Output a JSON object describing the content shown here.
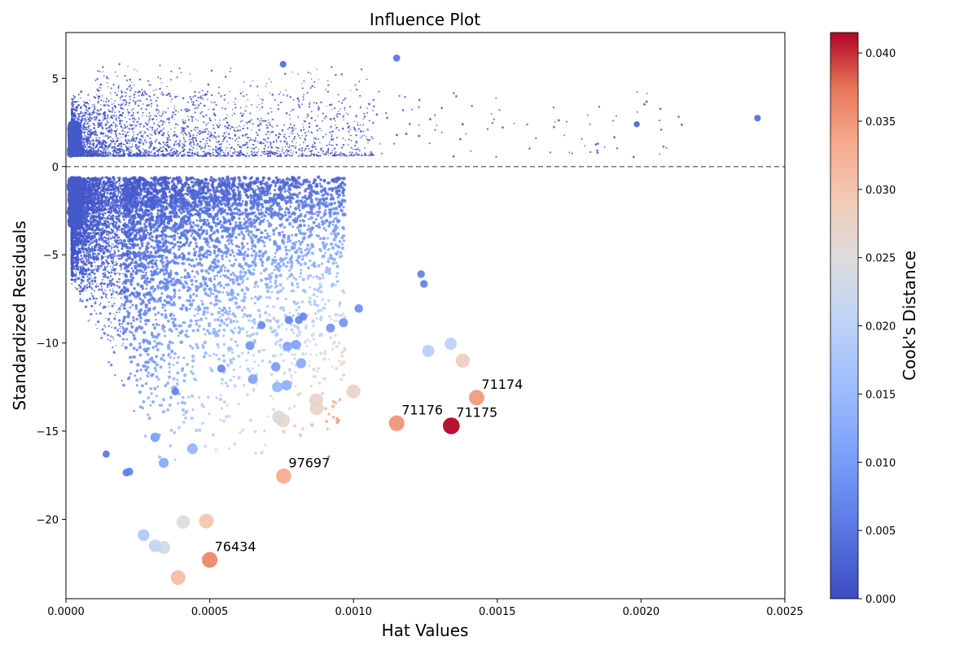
{
  "chart_data": {
    "type": "scatter",
    "title": "Influence Plot",
    "xlabel": "Hat Values",
    "ylabel": "Standardized Residuals",
    "xlim": [
      0,
      0.0025
    ],
    "ylim": [
      -24.5,
      7.6
    ],
    "x_ticks": [
      {
        "value": 0,
        "label": "0.0000"
      },
      {
        "value": 0.0005,
        "label": "0.0005"
      },
      {
        "value": 0.001,
        "label": "0.0010"
      },
      {
        "value": 0.0015,
        "label": "0.0015"
      },
      {
        "value": 0.002,
        "label": "0.0020"
      },
      {
        "value": 0.0025,
        "label": "0.0025"
      }
    ],
    "y_ticks": [
      {
        "value": 5,
        "label": "5"
      },
      {
        "value": 0,
        "label": "0"
      },
      {
        "value": -5,
        "label": "−5"
      },
      {
        "value": -10,
        "label": "−10"
      },
      {
        "value": -15,
        "label": "−15"
      },
      {
        "value": -20,
        "label": "−20"
      }
    ],
    "reference_line": {
      "y": 0,
      "style": "dashed",
      "color": "#808080"
    },
    "grid": false,
    "colorbar": {
      "label": "Cook's Distance",
      "colormap": "coolwarm",
      "range": [
        0,
        0.0415
      ],
      "ticks": [
        {
          "value": 0.0,
          "label": "0.000"
        },
        {
          "value": 0.005,
          "label": "0.005"
        },
        {
          "value": 0.01,
          "label": "0.010"
        },
        {
          "value": 0.015,
          "label": "0.015"
        },
        {
          "value": 0.02,
          "label": "0.020"
        },
        {
          "value": 0.025,
          "label": "0.025"
        },
        {
          "value": 0.03,
          "label": "0.030"
        },
        {
          "value": 0.035,
          "label": "0.035"
        },
        {
          "value": 0.04,
          "label": "0.040"
        }
      ]
    },
    "labeled_points": [
      {
        "label": "71174",
        "x": 0.001428,
        "y": -13.1,
        "cooks": 0.0345
      },
      {
        "label": "71176",
        "x": 0.00115,
        "y": -14.55,
        "cooks": 0.035
      },
      {
        "label": "71175",
        "x": 0.00134,
        "y": -14.7,
        "cooks": 0.0415
      },
      {
        "label": "97697",
        "x": 0.000757,
        "y": -17.55,
        "cooks": 0.033
      },
      {
        "label": "76434",
        "x": 0.0005,
        "y": -22.3,
        "cooks": 0.036
      }
    ],
    "notable_points": [
      {
        "x": 0.00039,
        "y": -23.3,
        "cooks": 0.031
      },
      {
        "x": 0.00034,
        "y": -21.6,
        "cooks": 0.023
      },
      {
        "x": 0.00031,
        "y": -21.5,
        "cooks": 0.021
      },
      {
        "x": 0.00027,
        "y": -20.9,
        "cooks": 0.018
      },
      {
        "x": 0.000408,
        "y": -20.15,
        "cooks": 0.025
      },
      {
        "x": 0.000488,
        "y": -20.1,
        "cooks": 0.03
      },
      {
        "x": 0.00044,
        "y": -16.0,
        "cooks": 0.014
      },
      {
        "x": 0.00034,
        "y": -16.8,
        "cooks": 0.012
      },
      {
        "x": 0.00031,
        "y": -15.35,
        "cooks": 0.01
      },
      {
        "x": 0.00074,
        "y": -14.2,
        "cooks": 0.024
      },
      {
        "x": 0.000755,
        "y": -14.4,
        "cooks": 0.026
      },
      {
        "x": 0.00087,
        "y": -13.25,
        "cooks": 0.027
      },
      {
        "x": 0.000872,
        "y": -13.7,
        "cooks": 0.027
      },
      {
        "x": 0.001,
        "y": -12.75,
        "cooks": 0.027
      },
      {
        "x": 0.001338,
        "y": -10.05,
        "cooks": 0.02
      },
      {
        "x": 0.00138,
        "y": -11.0,
        "cooks": 0.028
      },
      {
        "x": 0.00126,
        "y": -10.45,
        "cooks": 0.019
      },
      {
        "x": 0.000735,
        "y": -12.5,
        "cooks": 0.014
      },
      {
        "x": 0.000767,
        "y": -12.4,
        "cooks": 0.013
      },
      {
        "x": 0.00065,
        "y": -12.05,
        "cooks": 0.011
      },
      {
        "x": 0.000818,
        "y": -11.15,
        "cooks": 0.012
      },
      {
        "x": 0.00073,
        "y": -11.35,
        "cooks": 0.01
      },
      {
        "x": 0.00077,
        "y": -10.2,
        "cooks": 0.011
      },
      {
        "x": 0.0008,
        "y": -10.1,
        "cooks": 0.011
      },
      {
        "x": 0.00064,
        "y": -10.15,
        "cooks": 0.009
      },
      {
        "x": 0.00092,
        "y": -9.15,
        "cooks": 0.009
      },
      {
        "x": 0.000965,
        "y": -8.85,
        "cooks": 0.009
      },
      {
        "x": 0.001018,
        "y": -8.05,
        "cooks": 0.008
      },
      {
        "x": 0.00054,
        "y": -11.45,
        "cooks": 0.007
      },
      {
        "x": 0.00068,
        "y": -9.0,
        "cooks": 0.007
      },
      {
        "x": 0.000775,
        "y": -8.7,
        "cooks": 0.007
      },
      {
        "x": 0.00081,
        "y": -8.7,
        "cooks": 0.007
      },
      {
        "x": 0.000825,
        "y": -8.5,
        "cooks": 0.007
      },
      {
        "x": 0.001235,
        "y": -6.1,
        "cooks": 0.006
      },
      {
        "x": 0.001245,
        "y": -6.65,
        "cooks": 0.006
      },
      {
        "x": 0.00038,
        "y": -12.75,
        "cooks": 0.006
      },
      {
        "x": 0.00022,
        "y": -17.3,
        "cooks": 0.007
      },
      {
        "x": 0.00021,
        "y": -17.35,
        "cooks": 0.006
      },
      {
        "x": 0.00014,
        "y": -16.3,
        "cooks": 0.005
      },
      {
        "x": 0.00115,
        "y": 6.15,
        "cooks": 0.005
      },
      {
        "x": 0.000755,
        "y": 5.8,
        "cooks": 0.004
      },
      {
        "x": 0.002405,
        "y": 2.75,
        "cooks": 0.004
      },
      {
        "x": 0.001985,
        "y": 2.4,
        "cooks": 0.003
      }
    ],
    "background_cloud": {
      "description_only_for_rendering": false,
      "point_count_upper": 3600,
      "point_count_lower": 9000,
      "typical_cooks": 0.001
    }
  }
}
